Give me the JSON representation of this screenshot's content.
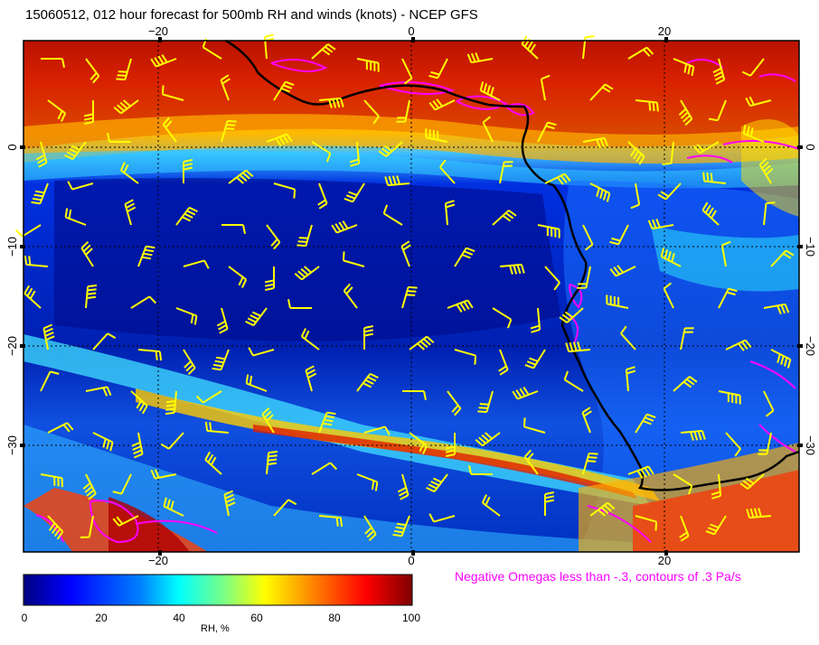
{
  "title": "15060512, 012 hour forecast for 500mb RH and winds (knots) - NCEP GFS",
  "negative_omega_note": "Negative Omegas less than -.3, contours of .3 Pa/s",
  "map": {
    "lon_ticks": [
      "−20",
      "0",
      "20"
    ],
    "lat_ticks": [
      "0",
      "−10",
      "−20",
      "−30"
    ],
    "colors": {
      "coast": "#000000",
      "wind_barbs": "#ffff00",
      "omega_contours": "#ff00ff",
      "grid": "#000000"
    },
    "icons": [
      "wind-barb-icon",
      "coastline",
      "omega-contour"
    ]
  },
  "colorbar": {
    "label": "RH, %",
    "ticks": [
      "0",
      "20",
      "40",
      "60",
      "80",
      "100"
    ],
    "colors": [
      "#00007f",
      "#0000ff",
      "#007fff",
      "#00ffff",
      "#7fff7f",
      "#ffff00",
      "#ff7f00",
      "#ff0000",
      "#7f0000"
    ]
  }
}
